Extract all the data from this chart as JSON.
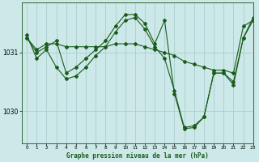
{
  "title": "Graphe pression niveau de la mer (hPa)",
  "background_color": "#cce8e8",
  "grid_color": "#aacece",
  "line_color": "#1a5c1a",
  "xlim": [
    -0.5,
    23
  ],
  "ylim": [
    1029.45,
    1031.85
  ],
  "yticks": [
    1030,
    1031
  ],
  "xticks": [
    0,
    1,
    2,
    3,
    4,
    5,
    6,
    7,
    8,
    9,
    10,
    11,
    12,
    13,
    14,
    15,
    16,
    17,
    18,
    19,
    20,
    21,
    22,
    23
  ],
  "series1": [
    1031.25,
    1031.05,
    1031.15,
    1031.15,
    1031.1,
    1031.1,
    1031.1,
    1031.1,
    1031.1,
    1031.15,
    1031.15,
    1031.15,
    1031.1,
    1031.05,
    1031.0,
    1030.95,
    1030.85,
    1030.8,
    1030.75,
    1030.7,
    1030.7,
    1030.65,
    1031.45,
    1031.55
  ],
  "series2": [
    1031.25,
    1031.0,
    1031.1,
    1031.2,
    1030.65,
    1030.75,
    1030.9,
    1031.05,
    1031.2,
    1031.45,
    1031.65,
    1031.65,
    1031.5,
    1031.15,
    1031.55,
    1030.3,
    1029.7,
    1029.72,
    1029.9,
    1030.65,
    1030.65,
    1030.45,
    1031.25,
    1031.55
  ],
  "series3": [
    1031.3,
    1030.9,
    1031.05,
    1030.75,
    1030.55,
    1030.6,
    1030.75,
    1030.95,
    1031.1,
    1031.35,
    1031.55,
    1031.6,
    1031.4,
    1031.1,
    1030.9,
    1030.35,
    1029.72,
    1029.75,
    1029.9,
    1030.65,
    1030.65,
    1030.5,
    1031.25,
    1031.6
  ]
}
